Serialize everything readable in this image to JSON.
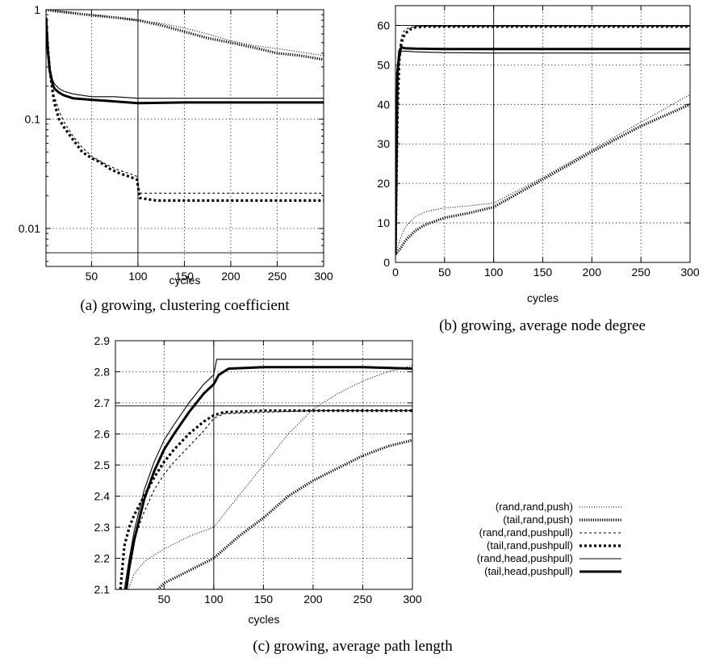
{
  "chart_data": [
    {
      "type": "line",
      "caption": "(a) growing, clustering coefficient",
      "xlabel": "cycles",
      "ylabel": "",
      "yscale": "log",
      "xlim": [
        1,
        300
      ],
      "ylim": [
        0.0045,
        1
      ],
      "xticks": [
        50,
        100,
        150,
        200,
        250,
        300
      ],
      "yticks": [
        0.01,
        0.1,
        1
      ],
      "ytick_labels": [
        "0.01",
        "0.1",
        "1"
      ],
      "grid": true,
      "reference_lines": [
        {
          "axis": "x",
          "value": 100
        },
        {
          "axis": "y",
          "value": 0.006
        }
      ],
      "series": [
        {
          "name": "(rand,rand,push)",
          "style": "dotted-thin",
          "x": [
            1,
            10,
            30,
            50,
            75,
            100,
            125,
            150,
            175,
            200,
            225,
            250,
            275,
            300
          ],
          "y": [
            1.0,
            0.98,
            0.94,
            0.9,
            0.85,
            0.8,
            0.75,
            0.68,
            0.6,
            0.52,
            0.47,
            0.44,
            0.41,
            0.38
          ]
        },
        {
          "name": "(tail,rand,push)",
          "style": "dotted-thick",
          "x": [
            1,
            10,
            30,
            50,
            75,
            100,
            125,
            150,
            175,
            200,
            225,
            250,
            275,
            300
          ],
          "y": [
            1.0,
            0.97,
            0.93,
            0.89,
            0.85,
            0.8,
            0.72,
            0.63,
            0.55,
            0.5,
            0.45,
            0.4,
            0.38,
            0.35
          ]
        },
        {
          "name": "(rand,rand,pushpull)",
          "style": "dashed-thin",
          "x": [
            1,
            3,
            5,
            8,
            10,
            15,
            20,
            30,
            40,
            50,
            60,
            70,
            80,
            90,
            99,
            102,
            120,
            150,
            200,
            250,
            300
          ],
          "y": [
            0.85,
            0.5,
            0.3,
            0.2,
            0.16,
            0.12,
            0.095,
            0.07,
            0.055,
            0.046,
            0.041,
            0.037,
            0.034,
            0.032,
            0.03,
            0.021,
            0.021,
            0.021,
            0.021,
            0.021,
            0.021
          ]
        },
        {
          "name": "(tail,rand,pushpull)",
          "style": "dashed-thick",
          "x": [
            1,
            3,
            5,
            8,
            10,
            15,
            20,
            30,
            40,
            50,
            60,
            70,
            80,
            90,
            99,
            102,
            120,
            150,
            200,
            250,
            300
          ],
          "y": [
            0.85,
            0.45,
            0.28,
            0.18,
            0.14,
            0.1,
            0.085,
            0.065,
            0.05,
            0.044,
            0.04,
            0.035,
            0.032,
            0.03,
            0.028,
            0.019,
            0.018,
            0.018,
            0.018,
            0.018,
            0.018
          ]
        },
        {
          "name": "(rand,head,pushpull)",
          "style": "solid-thin",
          "x": [
            1,
            3,
            5,
            8,
            10,
            15,
            20,
            30,
            50,
            75,
            100,
            150,
            200,
            250,
            300
          ],
          "y": [
            0.85,
            0.45,
            0.3,
            0.23,
            0.21,
            0.19,
            0.18,
            0.17,
            0.16,
            0.16,
            0.155,
            0.155,
            0.155,
            0.155,
            0.155
          ]
        },
        {
          "name": "(tail,head,pushpull)",
          "style": "solid-thick",
          "x": [
            1,
            3,
            5,
            8,
            10,
            15,
            20,
            30,
            50,
            75,
            100,
            150,
            200,
            250,
            300
          ],
          "y": [
            0.85,
            0.42,
            0.28,
            0.21,
            0.19,
            0.175,
            0.165,
            0.155,
            0.15,
            0.145,
            0.14,
            0.142,
            0.142,
            0.142,
            0.142
          ]
        }
      ]
    },
    {
      "type": "line",
      "caption": "(b) growing, average node degree",
      "xlabel": "cycles",
      "ylabel": "",
      "xlim": [
        0,
        300
      ],
      "ylim": [
        0,
        65
      ],
      "xticks": [
        0,
        50,
        100,
        150,
        200,
        250,
        300
      ],
      "yticks": [
        0,
        10,
        20,
        30,
        40,
        50,
        60
      ],
      "ytick_labels": [
        "0",
        "10",
        "20",
        "30",
        "40",
        "50",
        "60"
      ],
      "grid": true,
      "reference_lines": [
        {
          "axis": "x",
          "value": 100
        },
        {
          "axis": "y",
          "value": 60
        }
      ],
      "series": [
        {
          "name": "(rand,rand,push)",
          "style": "dotted-thin",
          "x": [
            0,
            5,
            10,
            20,
            30,
            50,
            75,
            100,
            150,
            200,
            250,
            300
          ],
          "y": [
            2,
            6,
            9,
            11.5,
            12.8,
            13.8,
            14.3,
            15,
            21.5,
            28.5,
            35.5,
            42.5
          ]
        },
        {
          "name": "(tail,rand,push)",
          "style": "dotted-thick",
          "x": [
            0,
            5,
            10,
            20,
            30,
            50,
            75,
            100,
            150,
            200,
            250,
            300
          ],
          "y": [
            2,
            3.5,
            5.5,
            8,
            9.5,
            11.3,
            12.5,
            14,
            21,
            28,
            34.5,
            40
          ]
        },
        {
          "name": "(rand,rand,pushpull)",
          "style": "dashed-thin",
          "x": [
            0,
            2,
            4,
            6,
            8,
            10,
            15,
            20,
            30,
            50,
            100,
            150,
            200,
            250,
            300
          ],
          "y": [
            2,
            40,
            54,
            57,
            58.3,
            59,
            59.5,
            59.7,
            59.8,
            59.8,
            59.8,
            59.8,
            59.8,
            59.8,
            59.8
          ]
        },
        {
          "name": "(tail,rand,pushpull)",
          "style": "dashed-thick",
          "x": [
            0,
            2,
            4,
            6,
            8,
            10,
            15,
            20,
            30,
            50,
            100,
            150,
            200,
            250,
            300
          ],
          "y": [
            2,
            38,
            52,
            55.5,
            57,
            58,
            59,
            59.5,
            59.7,
            59.7,
            59.7,
            59.7,
            59.7,
            59.7,
            59.7
          ]
        },
        {
          "name": "(rand,head,pushpull)",
          "style": "solid-thin",
          "x": [
            0,
            2,
            4,
            6,
            10,
            20,
            50,
            100,
            150,
            200,
            250,
            300
          ],
          "y": [
            2,
            45,
            51.5,
            53.5,
            53.5,
            53.3,
            53.1,
            53,
            53,
            53,
            53,
            53
          ]
        },
        {
          "name": "(tail,head,pushpull)",
          "style": "solid-thick",
          "x": [
            0,
            2,
            4,
            6,
            8,
            10,
            20,
            50,
            100,
            150,
            200,
            250,
            300
          ],
          "y": [
            2,
            48,
            53.5,
            54.5,
            54.3,
            54.2,
            54.1,
            54,
            54,
            54,
            54,
            54,
            54
          ]
        }
      ]
    },
    {
      "type": "line",
      "caption": "(c) growing, average path length",
      "xlabel": "cycles",
      "ylabel": "",
      "xlim": [
        1,
        300
      ],
      "ylim": [
        2.1,
        2.9
      ],
      "xticks": [
        50,
        100,
        150,
        200,
        250,
        300
      ],
      "yticks": [
        2.1,
        2.2,
        2.3,
        2.4,
        2.5,
        2.6,
        2.7,
        2.8,
        2.9
      ],
      "ytick_labels": [
        "2.1",
        "2.2",
        "2.3",
        "2.4",
        "2.5",
        "2.6",
        "2.7",
        "2.8",
        "2.9"
      ],
      "grid": true,
      "reference_lines": [
        {
          "axis": "x",
          "value": 100
        },
        {
          "axis": "y",
          "value": 2.69
        }
      ],
      "legend": {
        "position": "right"
      },
      "series": [
        {
          "name": "(rand,rand,push)",
          "style": "dotted-thin",
          "x": [
            14,
            20,
            30,
            50,
            75,
            100,
            125,
            150,
            175,
            200,
            225,
            250,
            275,
            300
          ],
          "y": [
            2.1,
            2.15,
            2.19,
            2.23,
            2.27,
            2.3,
            2.4,
            2.5,
            2.6,
            2.68,
            2.73,
            2.77,
            2.8,
            2.82
          ]
        },
        {
          "name": "(tail,rand,push)",
          "style": "dotted-thick",
          "x": [
            44,
            50,
            75,
            100,
            125,
            150,
            175,
            200,
            225,
            250,
            275,
            300
          ],
          "y": [
            2.1,
            2.12,
            2.16,
            2.2,
            2.27,
            2.33,
            2.4,
            2.45,
            2.49,
            2.53,
            2.56,
            2.58
          ]
        },
        {
          "name": "(rand,rand,pushpull)",
          "style": "dashed-thin",
          "x": [
            11,
            15,
            20,
            30,
            40,
            50,
            60,
            75,
            90,
            100,
            110,
            150,
            200,
            250,
            300
          ],
          "y": [
            2.1,
            2.18,
            2.26,
            2.35,
            2.42,
            2.47,
            2.51,
            2.56,
            2.61,
            2.65,
            2.665,
            2.67,
            2.675,
            2.675,
            2.675
          ]
        },
        {
          "name": "(tail,rand,pushpull)",
          "style": "dashed-thick",
          "x": [
            6,
            10,
            15,
            20,
            30,
            40,
            50,
            60,
            75,
            90,
            100,
            110,
            150,
            200,
            250,
            300
          ],
          "y": [
            2.1,
            2.24,
            2.3,
            2.34,
            2.4,
            2.46,
            2.51,
            2.55,
            2.6,
            2.64,
            2.66,
            2.67,
            2.675,
            2.675,
            2.675,
            2.675
          ]
        },
        {
          "name": "(rand,head,pushpull)",
          "style": "solid-thin",
          "x": [
            10,
            15,
            20,
            30,
            40,
            50,
            60,
            75,
            90,
            100,
            103,
            110,
            150,
            200,
            250,
            300
          ],
          "y": [
            2.1,
            2.2,
            2.29,
            2.42,
            2.51,
            2.58,
            2.63,
            2.7,
            2.76,
            2.79,
            2.84,
            2.84,
            2.84,
            2.84,
            2.84,
            2.84
          ]
        },
        {
          "name": "(tail,head,pushpull)",
          "style": "solid-thick",
          "x": [
            12,
            15,
            20,
            30,
            40,
            50,
            60,
            75,
            90,
            100,
            105,
            115,
            150,
            200,
            250,
            300
          ],
          "y": [
            2.1,
            2.17,
            2.26,
            2.39,
            2.48,
            2.55,
            2.6,
            2.67,
            2.73,
            2.76,
            2.79,
            2.81,
            2.815,
            2.815,
            2.815,
            2.81
          ]
        }
      ]
    }
  ]
}
